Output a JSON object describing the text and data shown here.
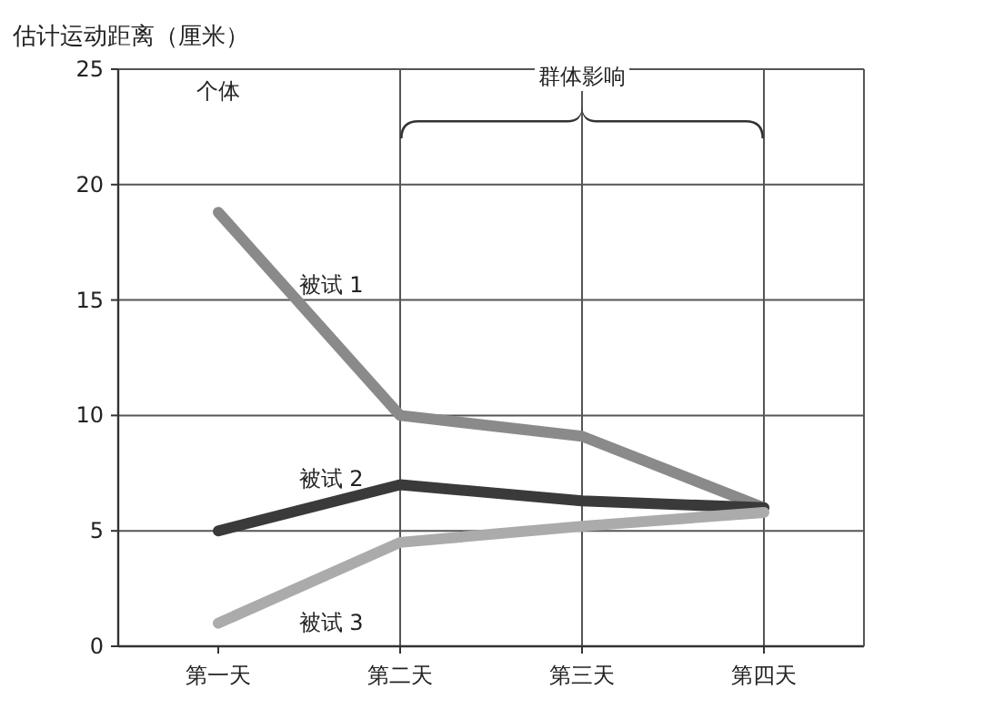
{
  "chart_data": {
    "type": "line",
    "ylabel": "估计运动距离（厘米）",
    "categories": [
      "第一天",
      "第二天",
      "第三天",
      "第四天"
    ],
    "series": [
      {
        "name": "被试 1",
        "color": "#8a8a8a",
        "values": [
          18.8,
          10,
          9.1,
          6
        ]
      },
      {
        "name": "被试 2",
        "color": "#3a3a3a",
        "values": [
          5,
          7,
          6.3,
          6
        ]
      },
      {
        "name": "被试 3",
        "color": "#ababab",
        "values": [
          1,
          4.5,
          5.2,
          5.8
        ]
      }
    ],
    "ylim": [
      0,
      25
    ],
    "yticks": [
      0,
      5,
      10,
      15,
      20,
      25
    ],
    "grid": true,
    "line_style": "solid",
    "marker": "none",
    "annotations": [
      "个体",
      "群体影响"
    ]
  }
}
